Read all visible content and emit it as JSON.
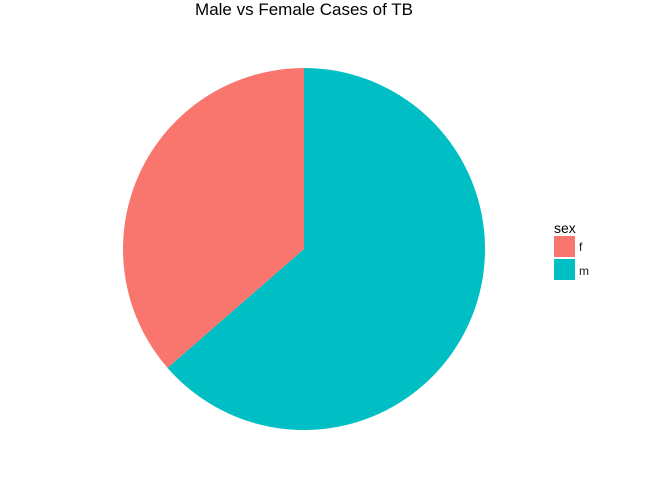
{
  "chart_data": {
    "type": "pie",
    "title": "Male vs Female Cases of TB",
    "categories": [
      "f",
      "m"
    ],
    "values": [
      0.364,
      0.636
    ],
    "colors": [
      "#F8766D",
      "#00BFC4"
    ],
    "legend": {
      "title": "sex",
      "placement": "right",
      "entries": [
        "f",
        "m"
      ]
    },
    "grid": false
  }
}
